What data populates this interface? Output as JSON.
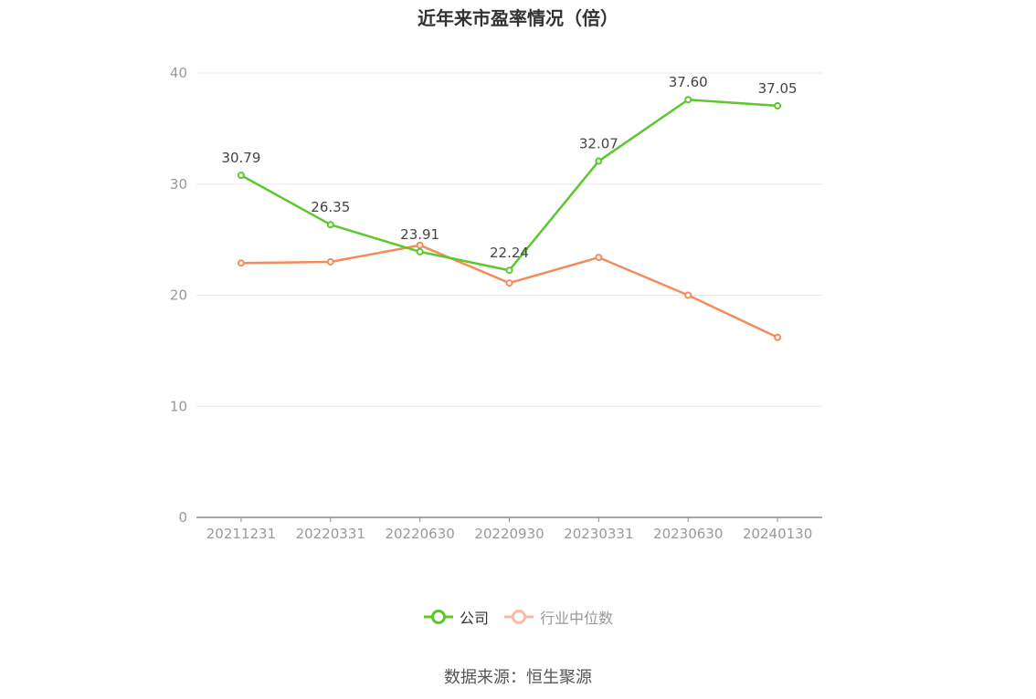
{
  "chart_data": {
    "type": "line",
    "title": "近年来市盈率情况（倍）",
    "categories": [
      "20211231",
      "20220331",
      "20220630",
      "20220930",
      "20230331",
      "20230630",
      "20240130"
    ],
    "series": [
      {
        "name": "公司",
        "values": [
          30.79,
          26.35,
          23.91,
          22.24,
          32.07,
          37.6,
          37.05
        ],
        "labels": [
          "30.79",
          "26.35",
          "23.91",
          "22.24",
          "32.07",
          "37.60",
          "37.05"
        ],
        "color": "#5cc72f"
      },
      {
        "name": "行业中位数",
        "values": [
          22.9,
          23.0,
          24.5,
          21.1,
          23.4,
          20.0,
          16.2
        ],
        "color": "#f28c5b"
      }
    ],
    "ylim": [
      0,
      40
    ],
    "yticks": [
      "0",
      "10",
      "20",
      "30",
      "40"
    ],
    "grid": true,
    "legend_position": "bottom-center"
  },
  "legend": {
    "company": "公司",
    "industry": "行业中位数"
  },
  "source": "数据来源：恒生聚源"
}
